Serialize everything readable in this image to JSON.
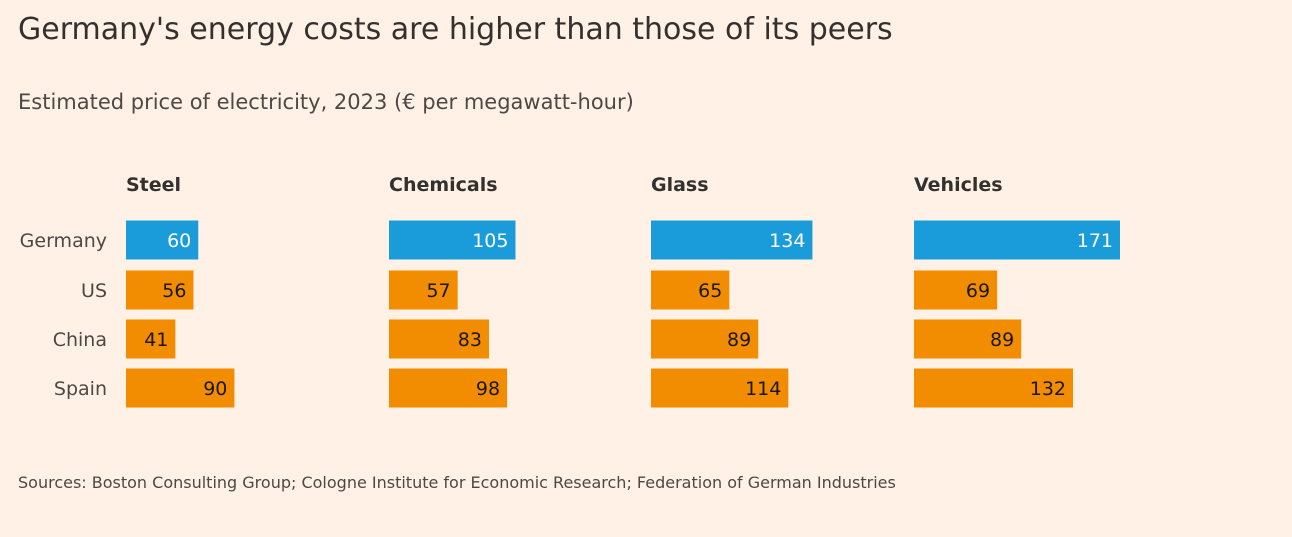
{
  "title": "Germany's energy costs are higher than those of its peers",
  "subtitle": "Estimated price of electricity, 2023 (€ per megawatt-hour)",
  "source": "Sources: Boston Consulting Group; Cologne Institute for Economic Research; Federation of German Industries",
  "colors": {
    "highlight": "#1A9CDB",
    "other": "#F28C00",
    "background": "#FFF1E5"
  },
  "chart_data": {
    "type": "bar",
    "orientation": "horizontal",
    "categories": [
      "Germany",
      "US",
      "China",
      "Spain"
    ],
    "highlight_category": "Germany",
    "panels": [
      {
        "title": "Steel",
        "values": [
          60,
          56,
          41,
          90
        ]
      },
      {
        "title": "Chemicals",
        "values": [
          105,
          57,
          83,
          98
        ]
      },
      {
        "title": "Glass",
        "values": [
          134,
          65,
          89,
          114
        ]
      },
      {
        "title": "Vehicles",
        "values": [
          171,
          69,
          89,
          132
        ]
      }
    ],
    "xlim": [
      0,
      171
    ],
    "grid": false,
    "data_labels": "inside-end"
  }
}
